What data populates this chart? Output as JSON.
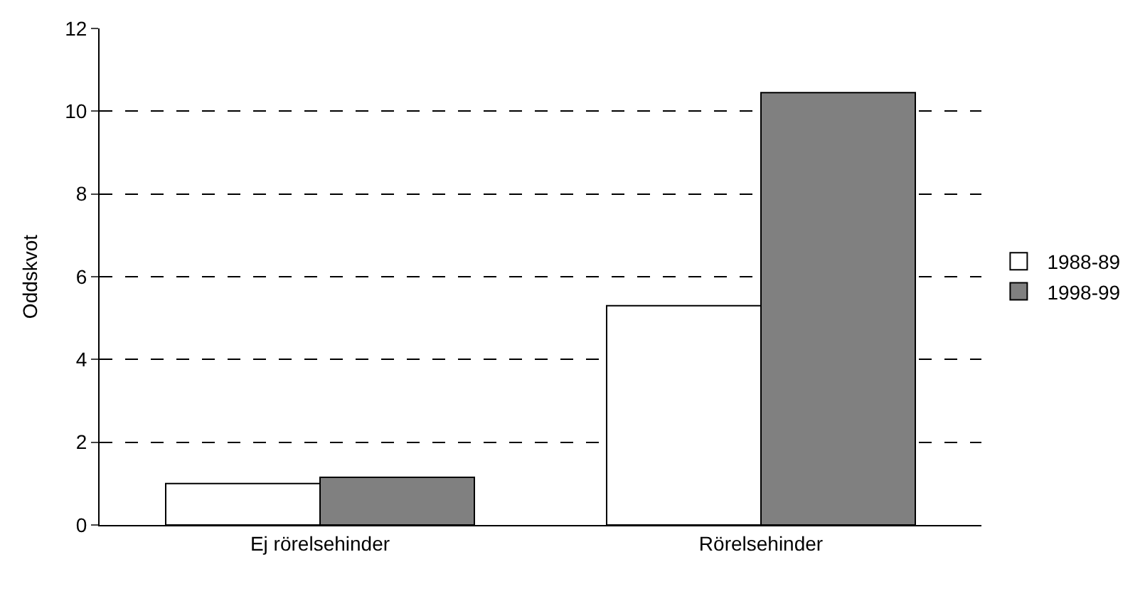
{
  "chart_data": {
    "type": "bar",
    "ylabel": "Oddskvot",
    "categories": [
      "Ej rörelsehinder",
      "Rörelsehinder"
    ],
    "series": [
      {
        "name": "1988-89",
        "color": "#ffffff",
        "values": [
          1.0,
          5.3
        ]
      },
      {
        "name": "1998-99",
        "color": "#808080",
        "values": [
          1.15,
          10.45
        ]
      }
    ],
    "ylim": [
      0,
      12
    ],
    "yticks": [
      0,
      2,
      4,
      6,
      8,
      10,
      12
    ],
    "grid": "y",
    "legend": "right"
  }
}
